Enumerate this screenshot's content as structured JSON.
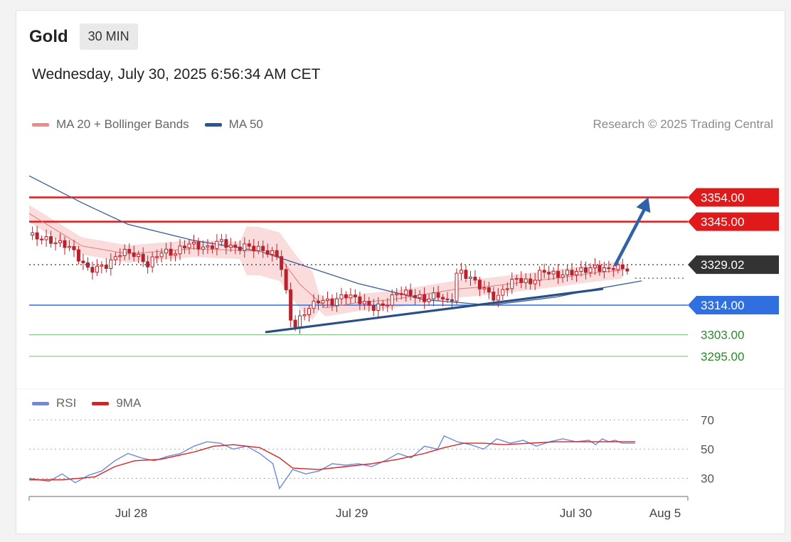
{
  "header": {
    "instrument": "Gold",
    "timeframe": "30 MIN",
    "datetime": "Wednesday, July 30, 2025 6:56:34 AM CET",
    "credit": "Research © 2025 Trading Central"
  },
  "legend_main": [
    {
      "label": "MA 20 + Bollinger Bands",
      "color": "#f08a8a"
    },
    {
      "label": "MA 50",
      "color": "#2a5699"
    }
  ],
  "legend_rsi": [
    {
      "label": "RSI",
      "color": "#6b8be0"
    },
    {
      "label": "9MA",
      "color": "#e02020"
    }
  ],
  "colors": {
    "resistance": "#e01a1a",
    "current": "#333333",
    "pivot": "#2f6fe0",
    "support": "#2a8a2a",
    "support_line": "#8ac48a",
    "candle": "#b8222c",
    "bollinger": "#fad6d6",
    "ma50": "#3a5e9c",
    "trendline": "#2a4e86",
    "arrow": "#2f62a8"
  },
  "chart_data": [
    {
      "type": "candlestick",
      "ylim": [
        3286,
        3375
      ],
      "x_tick_labels": [
        "Jul 28",
        "Jul 29",
        "Jul 30",
        "Aug 5"
      ],
      "levels": [
        {
          "value": 3354.0,
          "label": "3354.00",
          "role": "resistance"
        },
        {
          "value": 3345.0,
          "label": "3345.00",
          "role": "resistance"
        },
        {
          "value": 3329.02,
          "label": "3329.02",
          "role": "current"
        },
        {
          "value": 3314.0,
          "label": "3314.00",
          "role": "pivot"
        },
        {
          "value": 3303.0,
          "label": "3303.00",
          "role": "support"
        },
        {
          "value": 3295.0,
          "label": "3295.00",
          "role": "support"
        }
      ],
      "price_path": [
        [
          0,
          3340
        ],
        [
          6,
          3336
        ],
        [
          9,
          3327
        ],
        [
          12,
          3329
        ],
        [
          14,
          3334
        ],
        [
          16,
          3333
        ],
        [
          18,
          3329
        ],
        [
          20,
          3334
        ],
        [
          22,
          3333
        ],
        [
          24,
          3337
        ],
        [
          27,
          3335
        ],
        [
          29,
          3338
        ],
        [
          31,
          3335
        ],
        [
          33,
          3336
        ],
        [
          36,
          3334
        ],
        [
          38,
          3332
        ],
        [
          40,
          3305
        ],
        [
          42,
          3312
        ],
        [
          44,
          3316
        ],
        [
          46,
          3315
        ],
        [
          48,
          3318
        ],
        [
          50,
          3316
        ],
        [
          52,
          3313
        ],
        [
          54,
          3314
        ],
        [
          56,
          3319
        ],
        [
          58,
          3318
        ],
        [
          60,
          3316
        ],
        [
          62,
          3318
        ],
        [
          64,
          3314
        ],
        [
          65,
          3327
        ],
        [
          67,
          3324
        ],
        [
          69,
          3320
        ],
        [
          71,
          3316
        ],
        [
          72,
          3320
        ],
        [
          74,
          3324
        ],
        [
          76,
          3322
        ],
        [
          78,
          3327
        ],
        [
          80,
          3325
        ],
        [
          82,
          3326
        ],
        [
          84,
          3327
        ],
        [
          86,
          3328
        ],
        [
          88,
          3327
        ],
        [
          89,
          3329
        ],
        [
          90,
          3327
        ],
        [
          92,
          3329
        ]
      ],
      "ma50": [
        [
          0,
          3362
        ],
        [
          8,
          3352
        ],
        [
          15,
          3344
        ],
        [
          25,
          3338
        ],
        [
          35,
          3334
        ],
        [
          40,
          3330
        ],
        [
          50,
          3322
        ],
        [
          60,
          3316
        ],
        [
          70,
          3314
        ],
        [
          80,
          3317
        ],
        [
          86,
          3320
        ],
        [
          93,
          3323
        ]
      ],
      "bollinger_mid": [
        [
          0,
          3348
        ],
        [
          8,
          3336
        ],
        [
          15,
          3333
        ],
        [
          25,
          3335
        ],
        [
          35,
          3334
        ],
        [
          38,
          3332
        ],
        [
          41,
          3322
        ],
        [
          45,
          3313
        ],
        [
          50,
          3315
        ],
        [
          55,
          3316
        ],
        [
          60,
          3318
        ],
        [
          65,
          3320
        ],
        [
          70,
          3321
        ],
        [
          80,
          3324
        ],
        [
          86,
          3326
        ],
        [
          90,
          3327
        ]
      ],
      "trendline": [
        [
          36,
          3304
        ],
        [
          87,
          3320
        ]
      ],
      "projection_arrow": [
        [
          89,
          3329
        ],
        [
          94,
          3353
        ]
      ]
    },
    {
      "type": "line",
      "series_names": [
        "RSI",
        "9MA"
      ],
      "ylim": [
        20,
        75
      ],
      "y_ticks": [
        70,
        50,
        30
      ],
      "rsi": [
        [
          0,
          30
        ],
        [
          3,
          28
        ],
        [
          5,
          33
        ],
        [
          7,
          27
        ],
        [
          9,
          32
        ],
        [
          11,
          35
        ],
        [
          13,
          42
        ],
        [
          15,
          47
        ],
        [
          17,
          44
        ],
        [
          19,
          42
        ],
        [
          21,
          45
        ],
        [
          23,
          47
        ],
        [
          25,
          52
        ],
        [
          27,
          55
        ],
        [
          29,
          54
        ],
        [
          31,
          50
        ],
        [
          33,
          52
        ],
        [
          35,
          47
        ],
        [
          37,
          40
        ],
        [
          38,
          23
        ],
        [
          40,
          36
        ],
        [
          42,
          33
        ],
        [
          44,
          35
        ],
        [
          46,
          40
        ],
        [
          48,
          39
        ],
        [
          50,
          40
        ],
        [
          52,
          38
        ],
        [
          54,
          42
        ],
        [
          56,
          47
        ],
        [
          58,
          44
        ],
        [
          60,
          52
        ],
        [
          62,
          50
        ],
        [
          63,
          59
        ],
        [
          65,
          55
        ],
        [
          67,
          53
        ],
        [
          69,
          50
        ],
        [
          71,
          57
        ],
        [
          73,
          54
        ],
        [
          75,
          56
        ],
        [
          77,
          52
        ],
        [
          79,
          55
        ],
        [
          81,
          57
        ],
        [
          83,
          55
        ],
        [
          85,
          56
        ],
        [
          86,
          53
        ],
        [
          87,
          57
        ],
        [
          88,
          55
        ],
        [
          89,
          56
        ],
        [
          90,
          54
        ],
        [
          92,
          54
        ]
      ],
      "ma9": [
        [
          0,
          29
        ],
        [
          5,
          29
        ],
        [
          10,
          31
        ],
        [
          13,
          38
        ],
        [
          16,
          42
        ],
        [
          20,
          43
        ],
        [
          25,
          48
        ],
        [
          28,
          52
        ],
        [
          31,
          53
        ],
        [
          35,
          51
        ],
        [
          38,
          44
        ],
        [
          40,
          37
        ],
        [
          44,
          36
        ],
        [
          48,
          38
        ],
        [
          52,
          40
        ],
        [
          56,
          43
        ],
        [
          60,
          47
        ],
        [
          63,
          51
        ],
        [
          66,
          54
        ],
        [
          69,
          54
        ],
        [
          72,
          53
        ],
        [
          76,
          54
        ],
        [
          80,
          55
        ],
        [
          84,
          55
        ],
        [
          88,
          55
        ],
        [
          92,
          55
        ]
      ]
    }
  ]
}
